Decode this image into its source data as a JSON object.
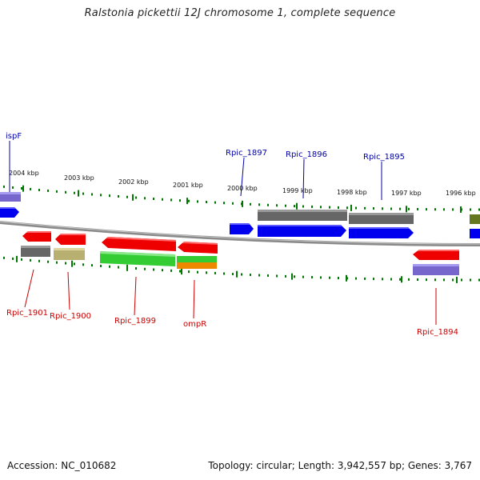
{
  "title": "Ralstonia pickettii 12J chromosome 1, complete sequence",
  "footer": {
    "accession": "Accession: NC_010682",
    "topology": "Topology: circular; Length: 3,942,557 bp; Genes: 3,767"
  },
  "scale_labels": [
    "2004 kbp",
    "2003 kbp",
    "2002 kbp",
    "2001 kbp",
    "2000 kbp",
    "1999 kbp",
    "1998 kbp",
    "1997 kbp",
    "1996 kbp"
  ],
  "genes_top": [
    "ispF",
    "Rpic_1897",
    "Rpic_1896",
    "Rpic_1895"
  ],
  "genes_bottom": [
    "Rpic_1901",
    "Rpic_1900",
    "Rpic_1899",
    "ompR",
    "Rpic_1894"
  ],
  "colors": {
    "forward_cds": "#0000ee",
    "reverse_cds": "#ee0000",
    "gene_span": "#666666",
    "label_forward": "#0000aa",
    "label_reverse": "#cc0000",
    "tick": "#007700",
    "backbone": "#888888",
    "product_green": "#33cc33",
    "product_olive": "#b8b070",
    "product_purple": "#7766cc",
    "product_orange": "#ee8800"
  }
}
